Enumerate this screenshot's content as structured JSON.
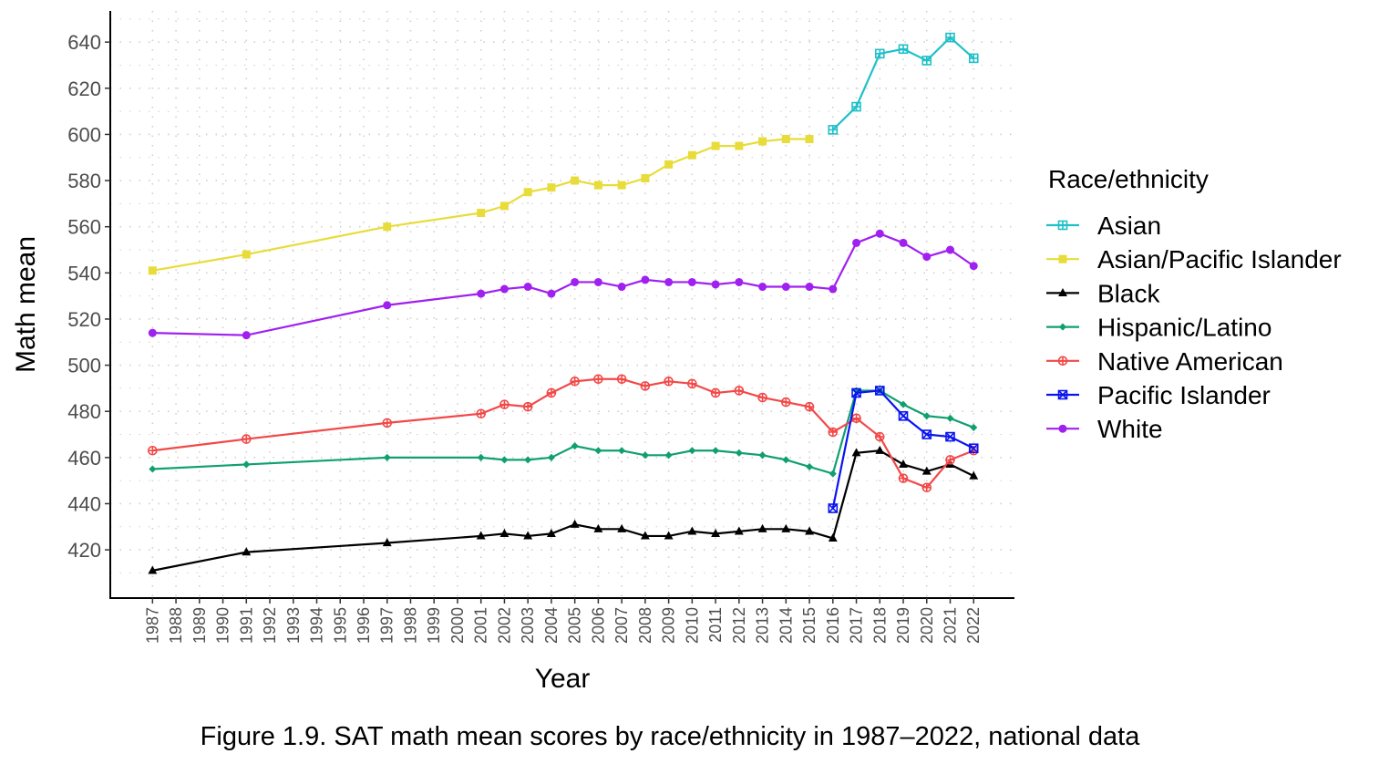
{
  "chart_data": {
    "type": "line",
    "title": "",
    "caption": "Figure 1.9. SAT math mean scores by race/ethnicity in 1987–2022, national data",
    "xlabel": "Year",
    "ylabel": "Math mean",
    "xlim": [
      1985.2,
      2023.7
    ],
    "ylim": [
      399.5,
      653.5
    ],
    "yticks": [
      420,
      440,
      460,
      480,
      500,
      520,
      540,
      560,
      580,
      600,
      620,
      640
    ],
    "xticks": [
      1987,
      1988,
      1989,
      1990,
      1991,
      1992,
      1993,
      1994,
      1995,
      1996,
      1997,
      1998,
      1999,
      2000,
      2001,
      2002,
      2003,
      2004,
      2005,
      2006,
      2007,
      2008,
      2009,
      2010,
      2011,
      2012,
      2013,
      2014,
      2015,
      2016,
      2017,
      2018,
      2019,
      2020,
      2021,
      2022
    ],
    "grid": true,
    "legend": {
      "title": "Race/ethnicity",
      "placement": "right"
    },
    "series": [
      {
        "name": "Asian",
        "color": "#1fc0c8",
        "marker": "square-plus",
        "x": [
          2016,
          2017,
          2018,
          2019,
          2020,
          2021,
          2022
        ],
        "values": [
          602,
          612,
          635,
          637,
          632,
          642,
          633
        ]
      },
      {
        "name": "Asian/Pacific Islander",
        "color": "#e8dc3a",
        "marker": "square-filled",
        "x": [
          1987,
          1991,
          1997,
          2001,
          2002,
          2003,
          2004,
          2005,
          2006,
          2007,
          2008,
          2009,
          2010,
          2011,
          2012,
          2013,
          2014,
          2015
        ],
        "values": [
          541,
          548,
          560,
          566,
          569,
          575,
          577,
          580,
          578,
          578,
          581,
          587,
          591,
          595,
          595,
          597,
          598,
          598
        ]
      },
      {
        "name": "Black",
        "color": "#000000",
        "marker": "triangle-filled",
        "x": [
          1987,
          1991,
          1997,
          2001,
          2002,
          2003,
          2004,
          2005,
          2006,
          2007,
          2008,
          2009,
          2010,
          2011,
          2012,
          2013,
          2014,
          2015,
          2016,
          2017,
          2018,
          2019,
          2020,
          2021,
          2022
        ],
        "values": [
          411,
          419,
          423,
          426,
          427,
          426,
          427,
          431,
          429,
          429,
          426,
          426,
          428,
          427,
          428,
          429,
          429,
          428,
          425,
          462,
          463,
          457,
          454,
          457,
          452
        ]
      },
      {
        "name": "Hispanic/Latino",
        "color": "#10a070",
        "marker": "diamond-filled",
        "x": [
          1987,
          1991,
          1997,
          2001,
          2002,
          2003,
          2004,
          2005,
          2006,
          2007,
          2008,
          2009,
          2010,
          2011,
          2012,
          2013,
          2014,
          2015,
          2016,
          2017,
          2018,
          2019,
          2020,
          2021,
          2022
        ],
        "values": [
          455,
          457,
          460,
          460,
          459,
          459,
          460,
          465,
          463,
          463,
          461,
          461,
          463,
          463,
          462,
          461,
          459,
          456,
          453,
          489,
          489,
          483,
          478,
          477,
          473
        ]
      },
      {
        "name": "Native American",
        "color": "#f24848",
        "marker": "circle-plus",
        "x": [
          1987,
          1991,
          1997,
          2001,
          2002,
          2003,
          2004,
          2005,
          2006,
          2007,
          2008,
          2009,
          2010,
          2011,
          2012,
          2013,
          2014,
          2015,
          2016,
          2017,
          2018,
          2019,
          2020,
          2021,
          2022
        ],
        "values": [
          463,
          468,
          475,
          479,
          483,
          482,
          488,
          493,
          494,
          494,
          491,
          493,
          492,
          488,
          489,
          486,
          484,
          482,
          471,
          477,
          469,
          451,
          447,
          459,
          463
        ]
      },
      {
        "name": "Pacific Islander",
        "color": "#0a14f0",
        "marker": "square-x",
        "x": [
          2016,
          2017,
          2018,
          2019,
          2020,
          2021,
          2022
        ],
        "values": [
          438,
          488,
          489,
          478,
          470,
          469,
          464
        ]
      },
      {
        "name": "White",
        "color": "#a020f0",
        "marker": "circle-filled",
        "x": [
          1987,
          1991,
          1997,
          2001,
          2002,
          2003,
          2004,
          2005,
          2006,
          2007,
          2008,
          2009,
          2010,
          2011,
          2012,
          2013,
          2014,
          2015,
          2016,
          2017,
          2018,
          2019,
          2020,
          2021,
          2022
        ],
        "values": [
          514,
          513,
          526,
          531,
          533,
          534,
          531,
          536,
          536,
          534,
          537,
          536,
          536,
          535,
          536,
          534,
          534,
          534,
          533,
          553,
          557,
          553,
          547,
          550,
          543
        ]
      }
    ]
  }
}
